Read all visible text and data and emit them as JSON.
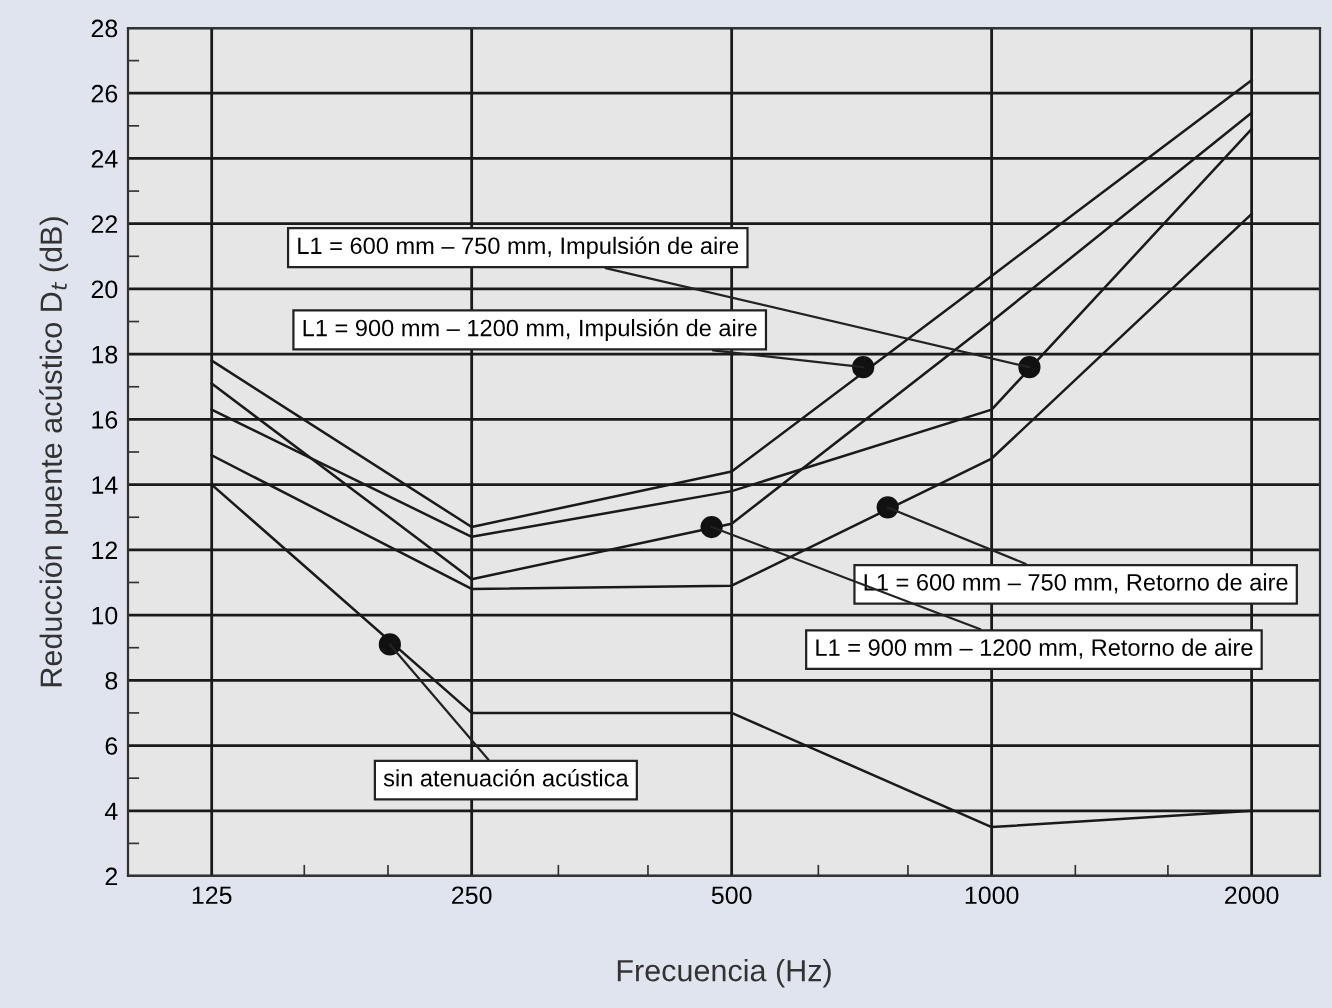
{
  "chart_data": {
    "type": "line",
    "xlabel": "Frecuencia (Hz)",
    "ylabel": "Reducción puente acústico D$_{t}$ (dB)",
    "x": [
      125,
      250,
      500,
      1000,
      2000
    ],
    "log": "x",
    "xlim": [
      100,
      2400
    ],
    "xticks": [
      125,
      250,
      500,
      1000,
      2000,
      {
        "value": 160,
        "label": null
      },
      {
        "value": 200,
        "label": null
      },
      {
        "value": 315,
        "label": null
      },
      {
        "value": 400,
        "label": null
      },
      {
        "value": 630,
        "label": null
      },
      {
        "value": 800,
        "label": null
      },
      {
        "value": 1250,
        "label": null
      },
      {
        "value": 1600,
        "label": null
      }
    ],
    "ylim": [
      2,
      28
    ],
    "yticks": [
      2,
      4,
      6,
      8,
      10,
      12,
      14,
      16,
      18,
      20,
      22,
      24,
      26,
      28,
      {
        "value": 3,
        "label": null
      },
      {
        "value": 5,
        "label": null
      },
      {
        "value": 7,
        "label": null
      },
      {
        "value": 9,
        "label": null
      },
      {
        "value": 11,
        "label": null
      },
      {
        "value": 13,
        "label": null
      },
      {
        "value": 15,
        "label": null
      },
      {
        "value": 17,
        "label": null
      },
      {
        "value": 19,
        "label": null
      },
      {
        "value": 21,
        "label": null
      },
      {
        "value": 23,
        "label": null
      },
      {
        "value": 25,
        "label": null
      },
      {
        "value": 27,
        "label": null
      }
    ],
    "grid": true,
    "marker": "none",
    "line_style": "solid",
    "series": [
      {
        "color": "#1a1a1a",
        "values": [
          16.3,
          12.4,
          13.8,
          16.3,
          24.9
        ]
      },
      {
        "color": "#1a1a1a",
        "values": [
          17.8,
          12.7,
          14.4,
          20.4,
          26.4
        ]
      },
      {
        "color": "#1a1a1a",
        "values": [
          14.9,
          10.8,
          10.9,
          14.8,
          22.3
        ]
      },
      {
        "color": "#1a1a1a",
        "values": [
          17.1,
          11.1,
          12.8,
          19.0,
          25.4
        ]
      },
      {
        "color": "#1a1a1a",
        "values": [
          14.0,
          7.0,
          7.0,
          3.5,
          4.0
        ]
      }
    ],
    "annotations": [
      {
        "text": "L1 = 600 mm – 750 mm, Impulsión de aire",
        "x": 1106,
        "y": 17.6
      },
      {
        "text": "L1 = 900 mm – 1200 mm, Impulsión de aire",
        "x": 710,
        "y": 17.6
      },
      {
        "text": "L1 = 600 mm – 750 mm, Retorno de aire",
        "x": 758,
        "y": 13.3
      },
      {
        "text": "L1 = 900 mm – 1200 mm, Retorno de aire",
        "x": 474,
        "y": 12.7
      },
      {
        "text": "sin atenuación acústica",
        "x": 201,
        "y": 9.1
      }
    ]
  }
}
